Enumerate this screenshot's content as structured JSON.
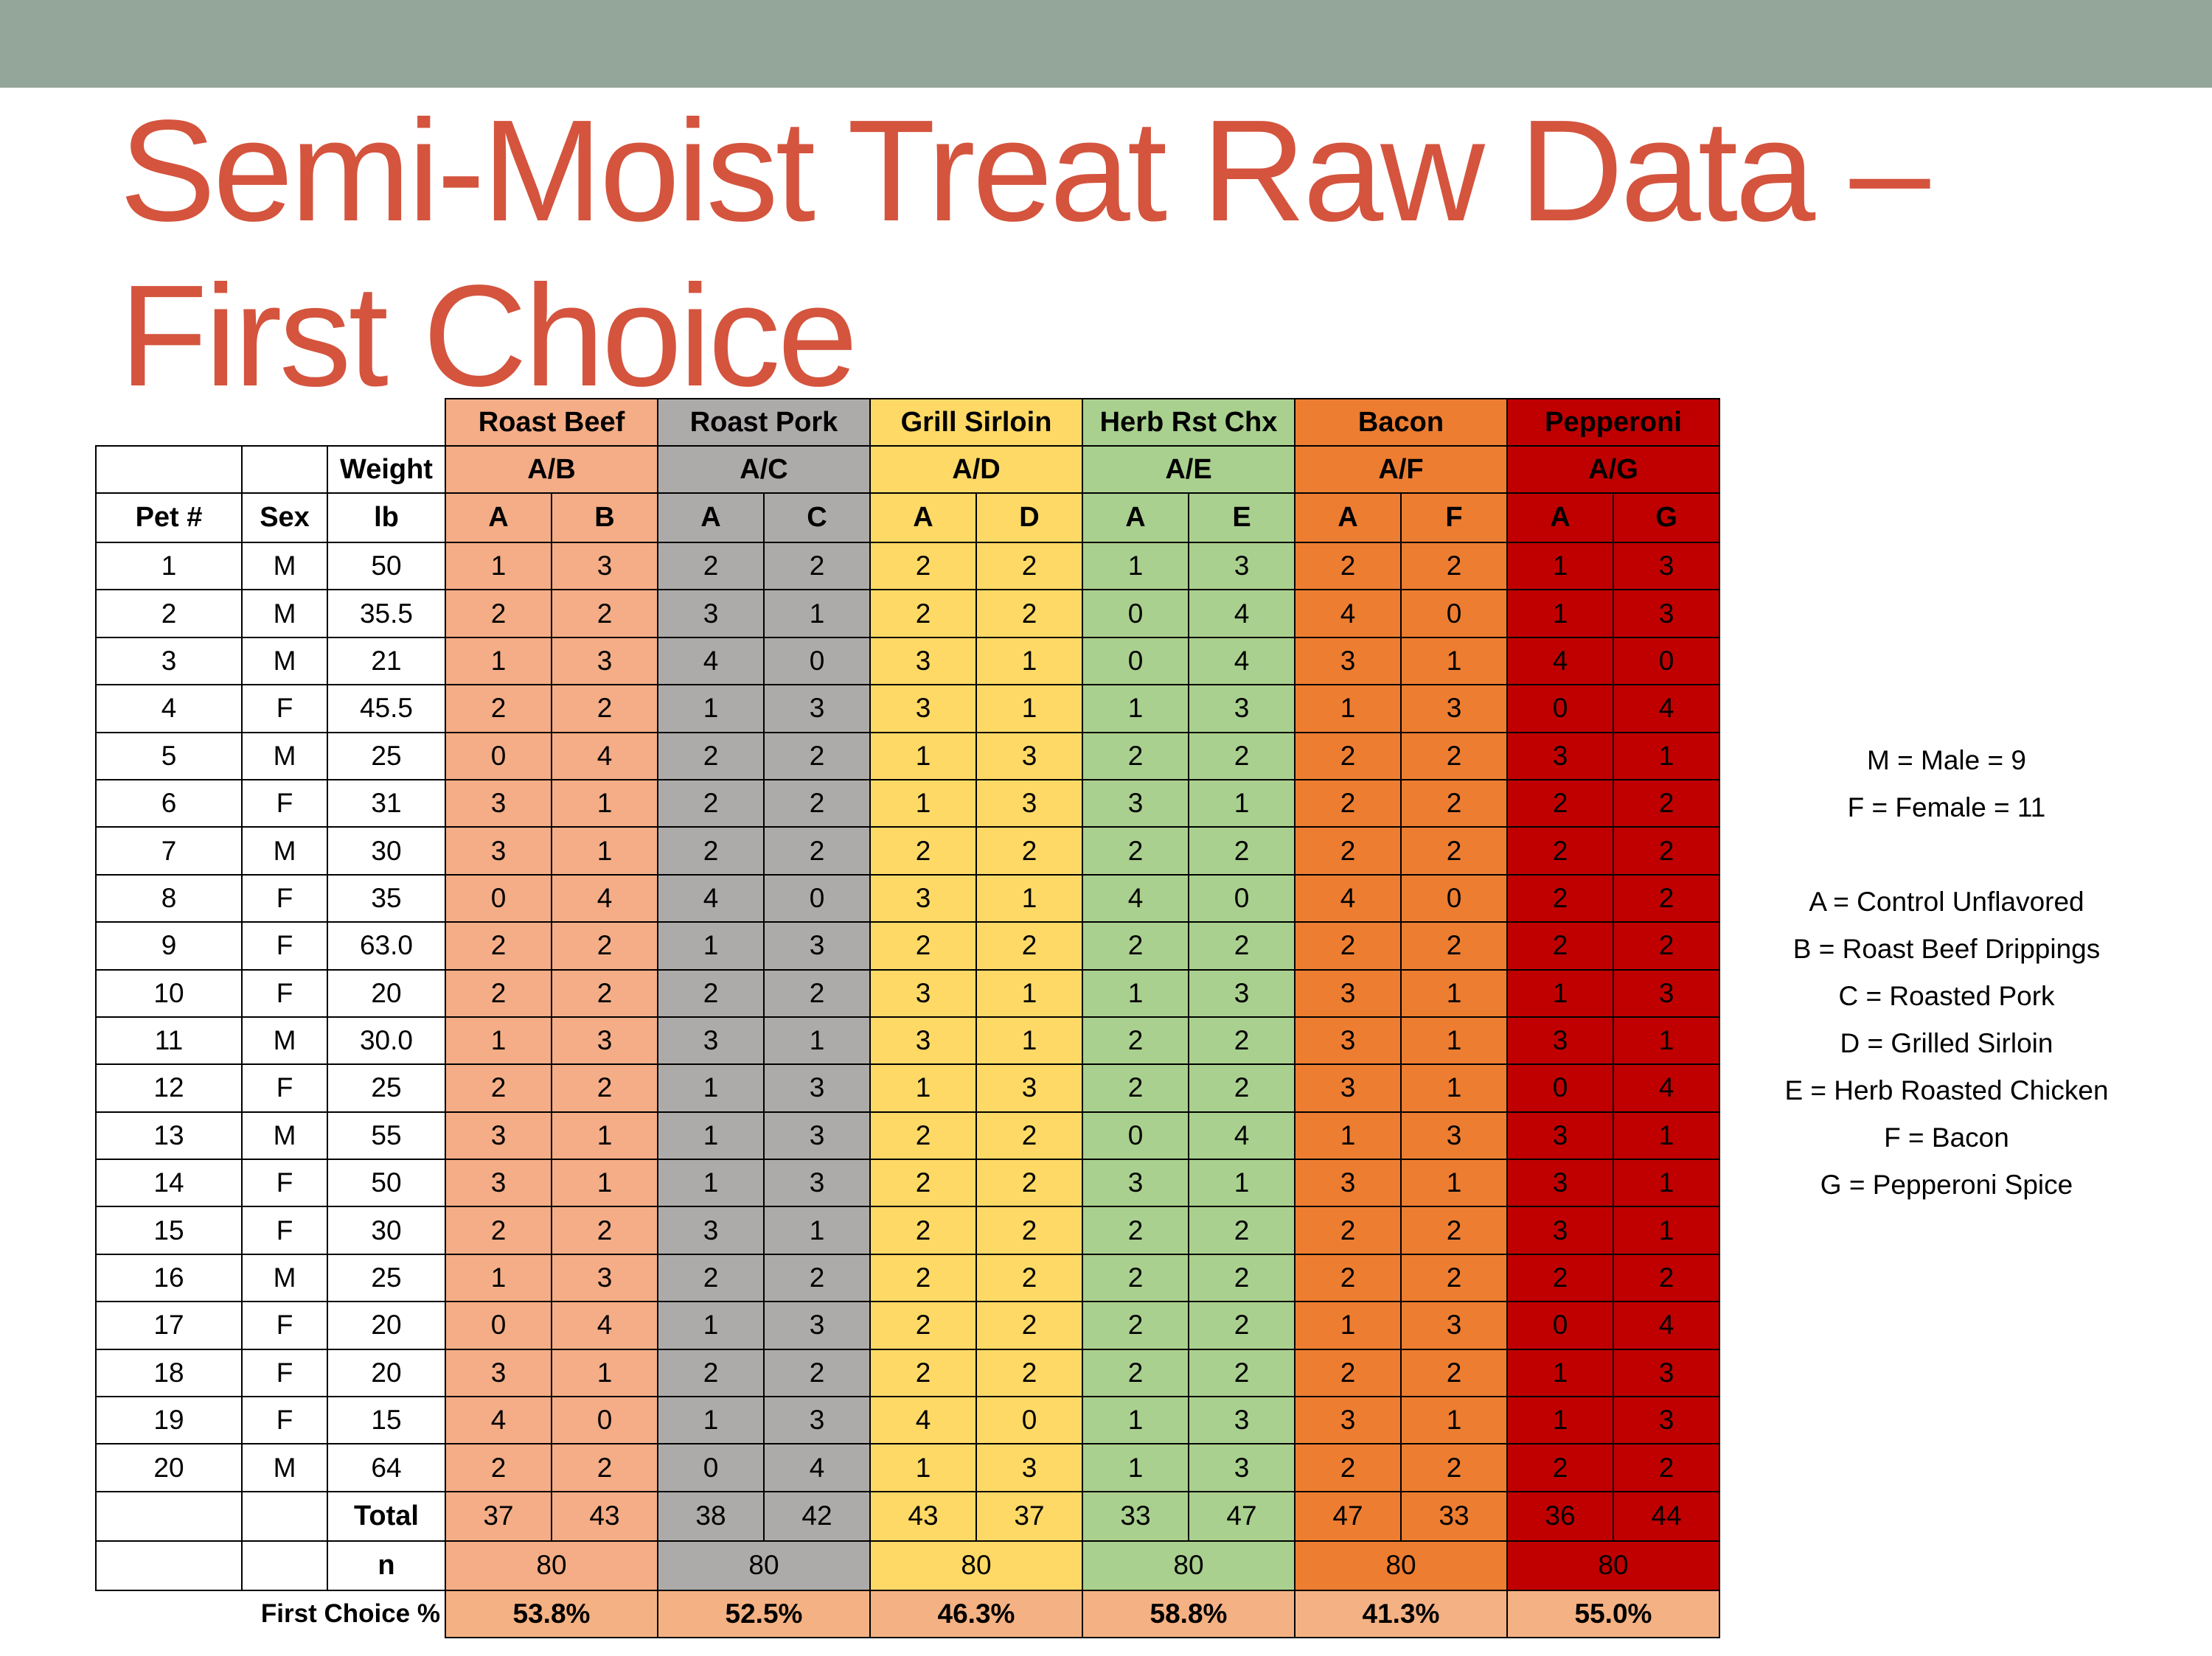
{
  "title": {
    "line1": "Semi-Moist Treat Raw Data –",
    "line2": "First Choice"
  },
  "colors": {
    "title": "#d4543e",
    "topbar": "#94a59a",
    "roast_beef": "#f4ad86",
    "roast_pork": "#adaaaa",
    "grill_sirloin": "#fed966",
    "herb_rst_chx": "#a9d08e",
    "bacon": "#ed7d31",
    "pepperoni": "#c00000"
  },
  "table": {
    "groups": [
      {
        "name": "Roast Beef",
        "pair": "A/B",
        "col1": "A",
        "col2": "B",
        "total1": "37",
        "total2": "43",
        "n": "80",
        "first_choice": "53.8%"
      },
      {
        "name": "Roast Pork",
        "pair": "A/C",
        "col1": "A",
        "col2": "C",
        "total1": "38",
        "total2": "42",
        "n": "80",
        "first_choice": "52.5%"
      },
      {
        "name": "Grill Sirloin",
        "pair": "A/D",
        "col1": "A",
        "col2": "D",
        "total1": "43",
        "total2": "37",
        "n": "80",
        "first_choice": "46.3%"
      },
      {
        "name": "Herb Rst Chx",
        "pair": "A/E",
        "col1": "A",
        "col2": "E",
        "total1": "33",
        "total2": "47",
        "n": "80",
        "first_choice": "58.8%"
      },
      {
        "name": "Bacon",
        "pair": "A/F",
        "col1": "A",
        "col2": "F",
        "total1": "47",
        "total2": "33",
        "n": "80",
        "first_choice": "41.3%"
      },
      {
        "name": "Pepperoni",
        "pair": "A/G",
        "col1": "A",
        "col2": "G",
        "total1": "36",
        "total2": "44",
        "n": "80",
        "first_choice": "55.0%"
      }
    ],
    "headers": {
      "weight": "Weight",
      "pet": "Pet #",
      "sex": "Sex",
      "lb": "lb",
      "total": "Total",
      "n": "n",
      "first_choice": "First Choice %"
    },
    "rows": [
      {
        "pet": "1",
        "sex": "M",
        "weight": "50",
        "values": [
          "1",
          "3",
          "2",
          "2",
          "2",
          "2",
          "1",
          "3",
          "2",
          "2",
          "1",
          "3"
        ]
      },
      {
        "pet": "2",
        "sex": "M",
        "weight": "35.5",
        "values": [
          "2",
          "2",
          "3",
          "1",
          "2",
          "2",
          "0",
          "4",
          "4",
          "0",
          "1",
          "3"
        ]
      },
      {
        "pet": "3",
        "sex": "M",
        "weight": "21",
        "values": [
          "1",
          "3",
          "4",
          "0",
          "3",
          "1",
          "0",
          "4",
          "3",
          "1",
          "4",
          "0"
        ]
      },
      {
        "pet": "4",
        "sex": "F",
        "weight": "45.5",
        "values": [
          "2",
          "2",
          "1",
          "3",
          "3",
          "1",
          "1",
          "3",
          "1",
          "3",
          "0",
          "4"
        ]
      },
      {
        "pet": "5",
        "sex": "M",
        "weight": "25",
        "values": [
          "0",
          "4",
          "2",
          "2",
          "1",
          "3",
          "2",
          "2",
          "2",
          "2",
          "3",
          "1"
        ]
      },
      {
        "pet": "6",
        "sex": "F",
        "weight": "31",
        "values": [
          "3",
          "1",
          "2",
          "2",
          "1",
          "3",
          "3",
          "1",
          "2",
          "2",
          "2",
          "2"
        ]
      },
      {
        "pet": "7",
        "sex": "M",
        "weight": "30",
        "values": [
          "3",
          "1",
          "2",
          "2",
          "2",
          "2",
          "2",
          "2",
          "2",
          "2",
          "2",
          "2"
        ]
      },
      {
        "pet": "8",
        "sex": "F",
        "weight": "35",
        "values": [
          "0",
          "4",
          "4",
          "0",
          "3",
          "1",
          "4",
          "0",
          "4",
          "0",
          "2",
          "2"
        ]
      },
      {
        "pet": "9",
        "sex": "F",
        "weight": "63.0",
        "values": [
          "2",
          "2",
          "1",
          "3",
          "2",
          "2",
          "2",
          "2",
          "2",
          "2",
          "2",
          "2"
        ]
      },
      {
        "pet": "10",
        "sex": "F",
        "weight": "20",
        "values": [
          "2",
          "2",
          "2",
          "2",
          "3",
          "1",
          "1",
          "3",
          "3",
          "1",
          "1",
          "3"
        ]
      },
      {
        "pet": "11",
        "sex": "M",
        "weight": "30.0",
        "values": [
          "1",
          "3",
          "3",
          "1",
          "3",
          "1",
          "2",
          "2",
          "3",
          "1",
          "3",
          "1"
        ]
      },
      {
        "pet": "12",
        "sex": "F",
        "weight": "25",
        "values": [
          "2",
          "2",
          "1",
          "3",
          "1",
          "3",
          "2",
          "2",
          "3",
          "1",
          "0",
          "4"
        ]
      },
      {
        "pet": "13",
        "sex": "M",
        "weight": "55",
        "values": [
          "3",
          "1",
          "1",
          "3",
          "2",
          "2",
          "0",
          "4",
          "1",
          "3",
          "3",
          "1"
        ]
      },
      {
        "pet": "14",
        "sex": "F",
        "weight": "50",
        "values": [
          "3",
          "1",
          "1",
          "3",
          "2",
          "2",
          "3",
          "1",
          "3",
          "1",
          "3",
          "1"
        ]
      },
      {
        "pet": "15",
        "sex": "F",
        "weight": "30",
        "values": [
          "2",
          "2",
          "3",
          "1",
          "2",
          "2",
          "2",
          "2",
          "2",
          "2",
          "3",
          "1"
        ]
      },
      {
        "pet": "16",
        "sex": "M",
        "weight": "25",
        "values": [
          "1",
          "3",
          "2",
          "2",
          "2",
          "2",
          "2",
          "2",
          "2",
          "2",
          "2",
          "2"
        ]
      },
      {
        "pet": "17",
        "sex": "F",
        "weight": "20",
        "values": [
          "0",
          "4",
          "1",
          "3",
          "2",
          "2",
          "2",
          "2",
          "1",
          "3",
          "0",
          "4"
        ]
      },
      {
        "pet": "18",
        "sex": "F",
        "weight": "20",
        "values": [
          "3",
          "1",
          "2",
          "2",
          "2",
          "2",
          "2",
          "2",
          "2",
          "2",
          "1",
          "3"
        ]
      },
      {
        "pet": "19",
        "sex": "F",
        "weight": "15",
        "values": [
          "4",
          "0",
          "1",
          "3",
          "4",
          "0",
          "1",
          "3",
          "3",
          "1",
          "1",
          "3"
        ]
      },
      {
        "pet": "20",
        "sex": "M",
        "weight": "64",
        "values": [
          "2",
          "2",
          "0",
          "4",
          "1",
          "3",
          "1",
          "3",
          "2",
          "2",
          "2",
          "2"
        ]
      }
    ]
  },
  "legend": {
    "male": "M = Male = 9",
    "female": "F = Female = 11",
    "items": [
      "A = Control Unflavored",
      "B = Roast Beef Drippings",
      "C = Roasted Pork",
      "D = Grilled Sirloin",
      "E = Herb Roasted Chicken",
      "F = Bacon",
      "G = Pepperoni Spice"
    ]
  }
}
